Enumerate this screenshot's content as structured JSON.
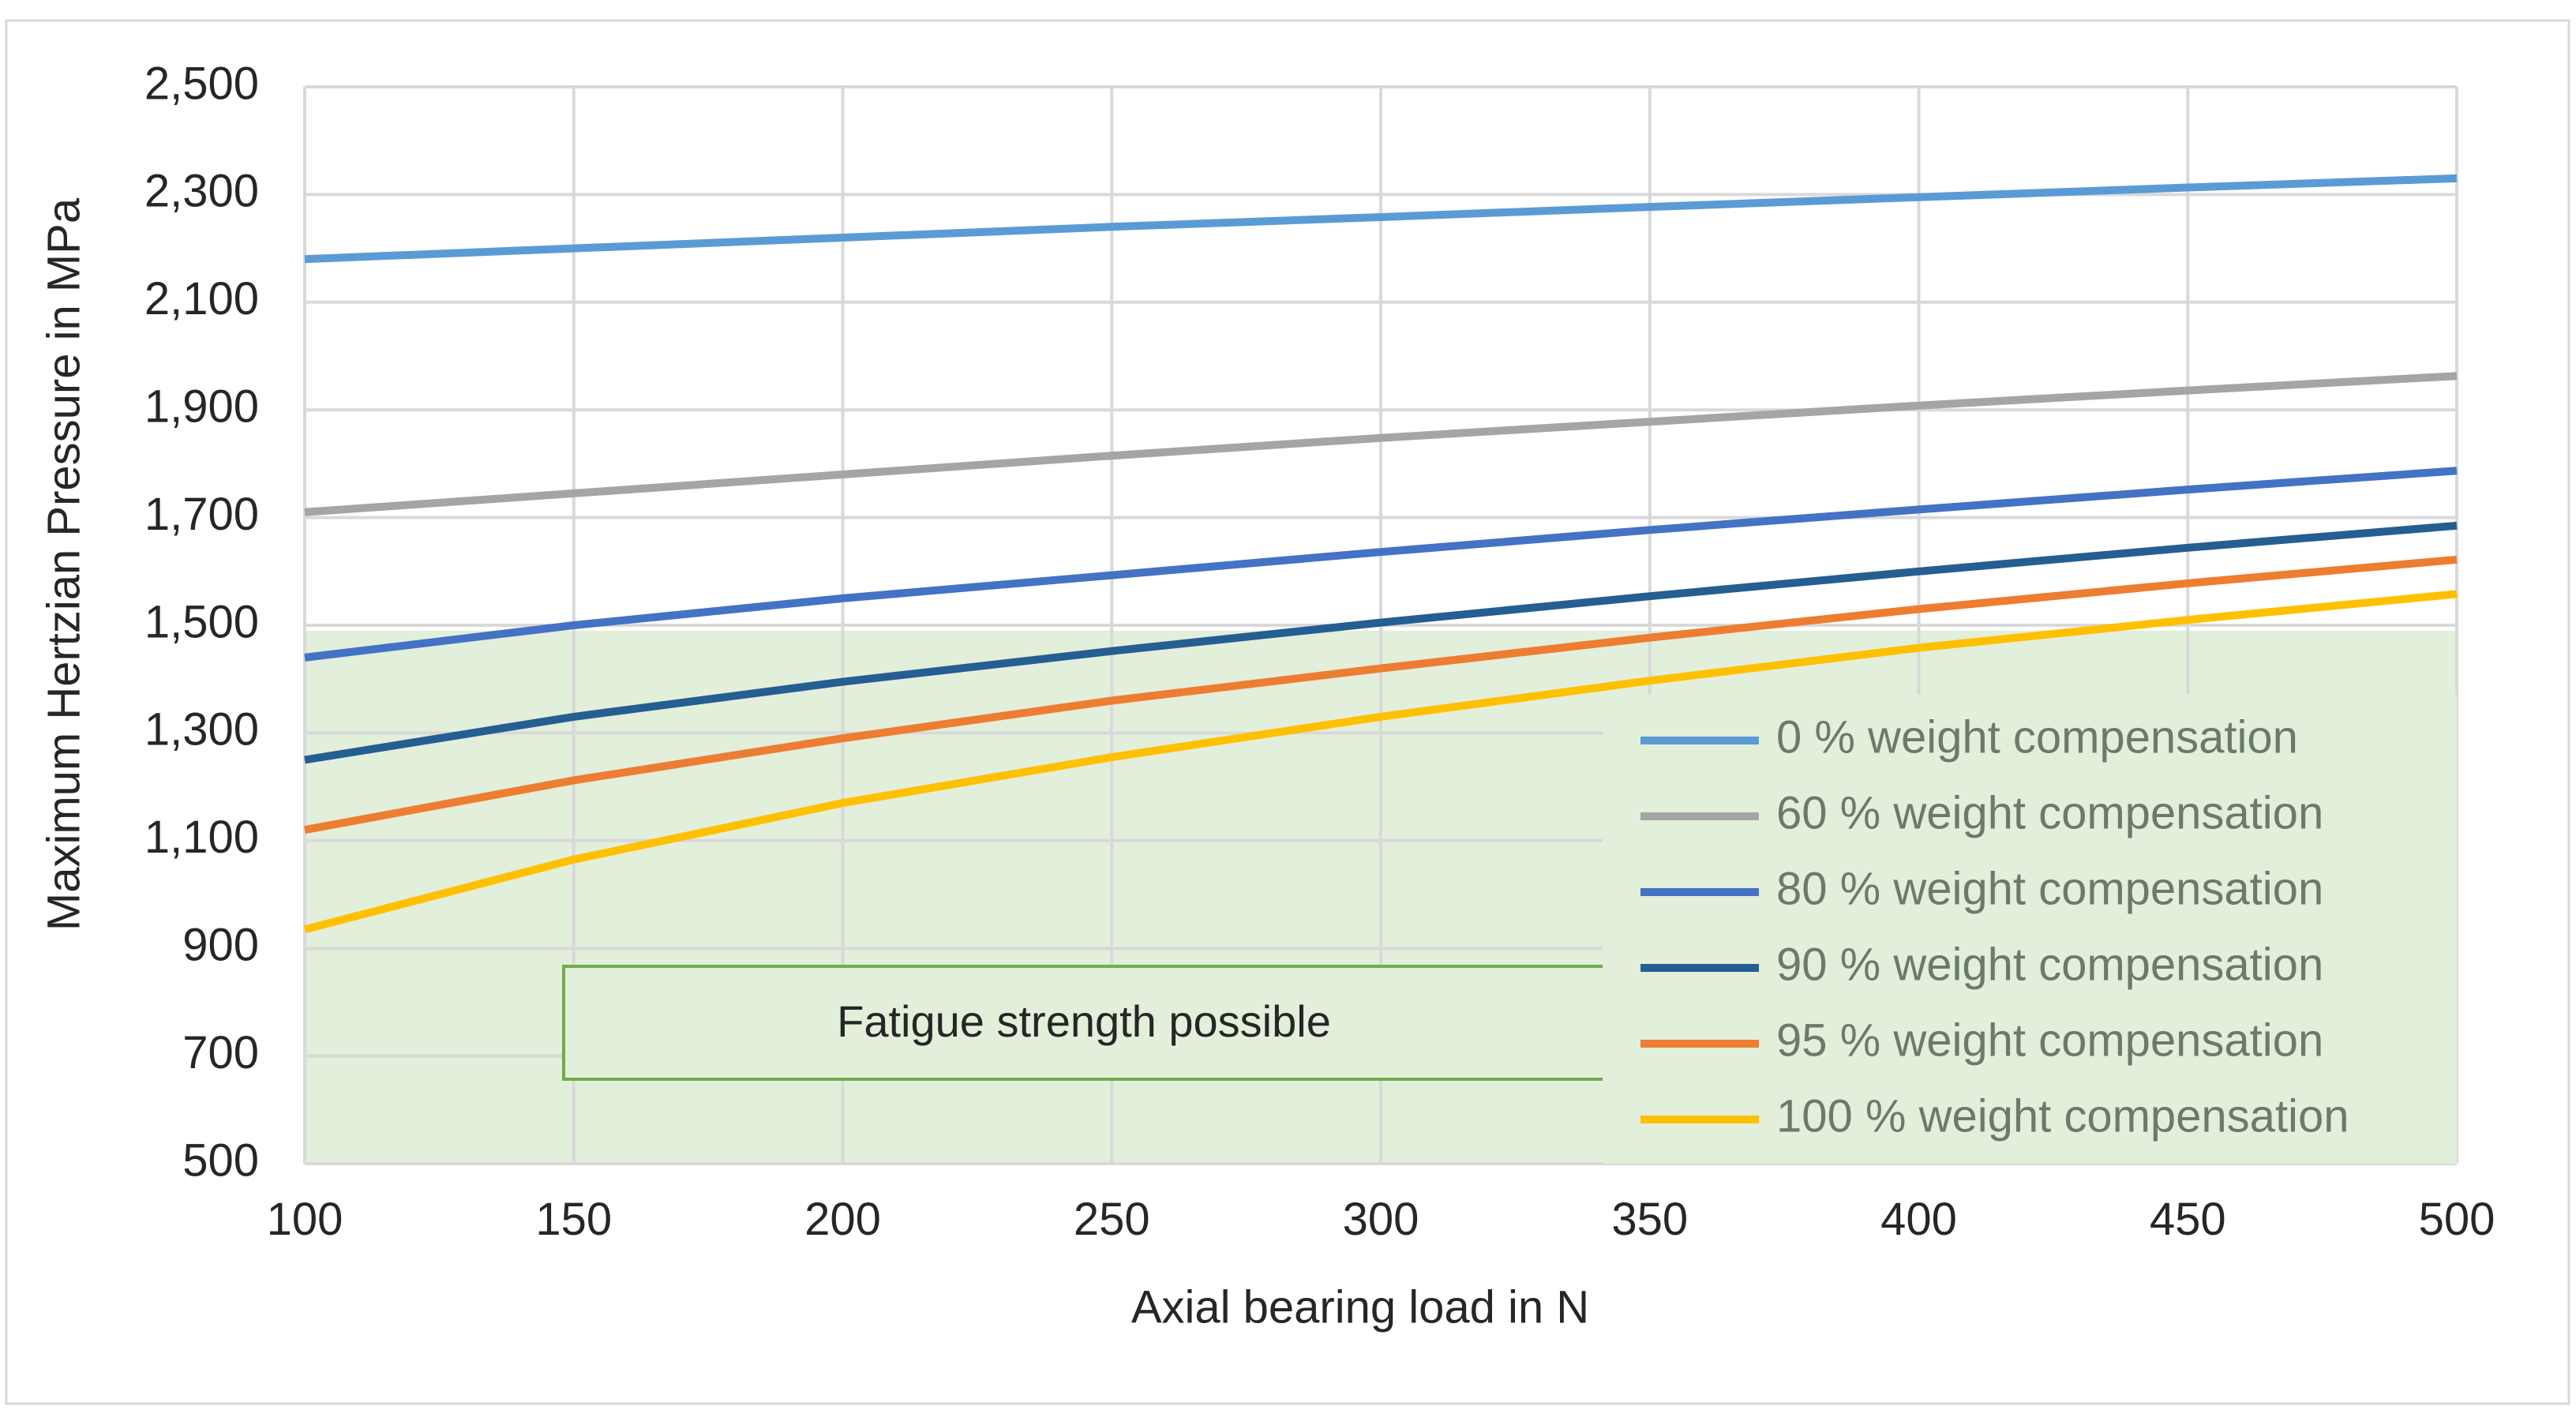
{
  "chart_data": {
    "type": "line",
    "title": "",
    "xlabel": "Axial bearing load in N",
    "ylabel": "Maximum Hertzian Pressure in MPa",
    "xlim": [
      100,
      500
    ],
    "ylim": [
      500,
      2500
    ],
    "x_ticks": [
      100,
      150,
      200,
      250,
      300,
      350,
      400,
      450,
      500
    ],
    "y_ticks": [
      500,
      700,
      900,
      1100,
      1300,
      1500,
      1700,
      1900,
      2100,
      2300,
      2500
    ],
    "x_tick_labels": [
      "100",
      "150",
      "200",
      "250",
      "300",
      "350",
      "400",
      "450",
      "500"
    ],
    "y_tick_labels": [
      "500",
      "700",
      "900",
      "1,100",
      "1,300",
      "1,500",
      "1,700",
      "1,900",
      "2,100",
      "2,300",
      "2,500"
    ],
    "grid": true,
    "legend_position": "bottom-right",
    "x": [
      100,
      150,
      200,
      250,
      300,
      350,
      400,
      450,
      500
    ],
    "series": [
      {
        "name": "0 % weight compensation",
        "color": "#5B9BD5",
        "values": [
          2180,
          2200,
          2220,
          2240,
          2258,
          2277,
          2295,
          2313,
          2330
        ]
      },
      {
        "name": "60 % weight compensation",
        "color": "#A5A5A5",
        "values": [
          1710,
          1745,
          1780,
          1815,
          1848,
          1878,
          1908,
          1936,
          1963
        ]
      },
      {
        "name": "80 % weight compensation",
        "color": "#4472C4",
        "values": [
          1440,
          1500,
          1550,
          1593,
          1636,
          1677,
          1715,
          1752,
          1787
        ]
      },
      {
        "name": "90 % weight compensation",
        "color": "#255E91",
        "values": [
          1250,
          1330,
          1395,
          1452,
          1505,
          1554,
          1600,
          1644,
          1685
        ]
      },
      {
        "name": "95 % weight compensation",
        "color": "#ED7D31",
        "values": [
          1120,
          1212,
          1290,
          1360,
          1420,
          1477,
          1530,
          1578,
          1622
        ]
      },
      {
        "name": "100 % weight compensation",
        "color": "#FFC000",
        "values": [
          935,
          1065,
          1170,
          1255,
          1330,
          1397,
          1458,
          1510,
          1558
        ]
      }
    ],
    "region": {
      "label": "Fatigue strength possible",
      "y_from": 500,
      "y_to": 1490,
      "fill": "#E2EFDA",
      "box_border": "#70AD47"
    }
  }
}
